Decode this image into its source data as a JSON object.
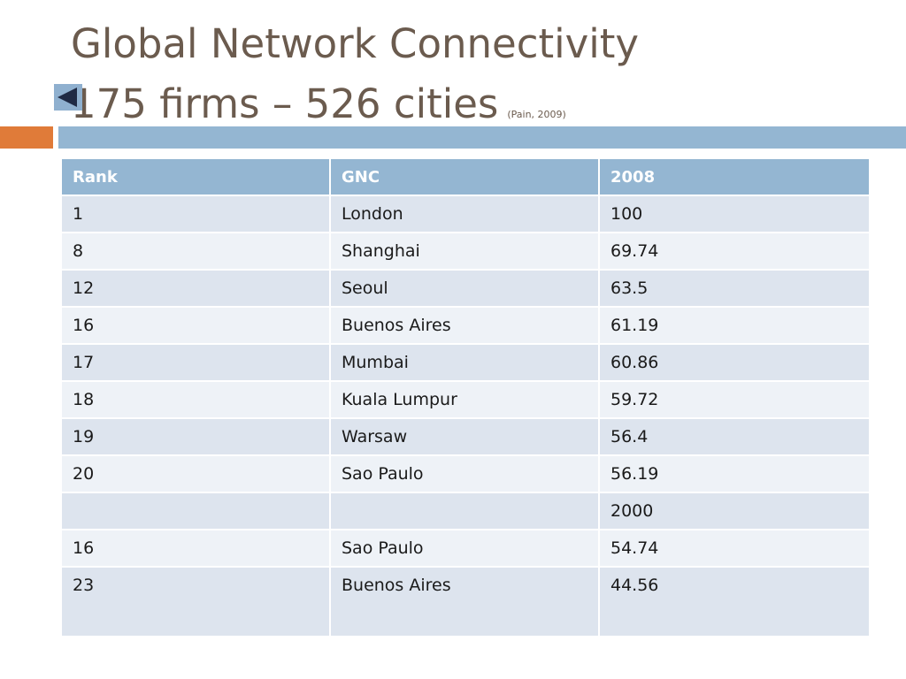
{
  "slide": {
    "title_line1": "Global Network Connectivity",
    "title_line2": "175 firms – 526 cities",
    "citation": "(Pain, 2009)",
    "back_icon": "back-arrow-icon"
  },
  "colors": {
    "title": "#6b5b4e",
    "accent_orange": "#e07b39",
    "accent_blue": "#94b6d2",
    "row_dark": "#dde4ee",
    "row_light": "#eef2f7"
  },
  "table": {
    "headers": [
      "Rank",
      "GNC",
      "2008"
    ],
    "rows": [
      [
        "1",
        "London",
        "100"
      ],
      [
        "8",
        "Shanghai",
        "69.74"
      ],
      [
        "12",
        "Seoul",
        "63.5"
      ],
      [
        "16",
        "Buenos Aires",
        "61.19"
      ],
      [
        "17",
        "Mumbai",
        "60.86"
      ],
      [
        "18",
        "Kuala Lumpur",
        "59.72"
      ],
      [
        "19",
        "Warsaw",
        "56.4"
      ],
      [
        "20",
        "Sao Paulo",
        "56.19"
      ],
      [
        "",
        "",
        "2000"
      ],
      [
        "16",
        "Sao Paulo",
        "54.74"
      ],
      [
        "23",
        "Buenos Aires",
        "44.56"
      ]
    ]
  }
}
